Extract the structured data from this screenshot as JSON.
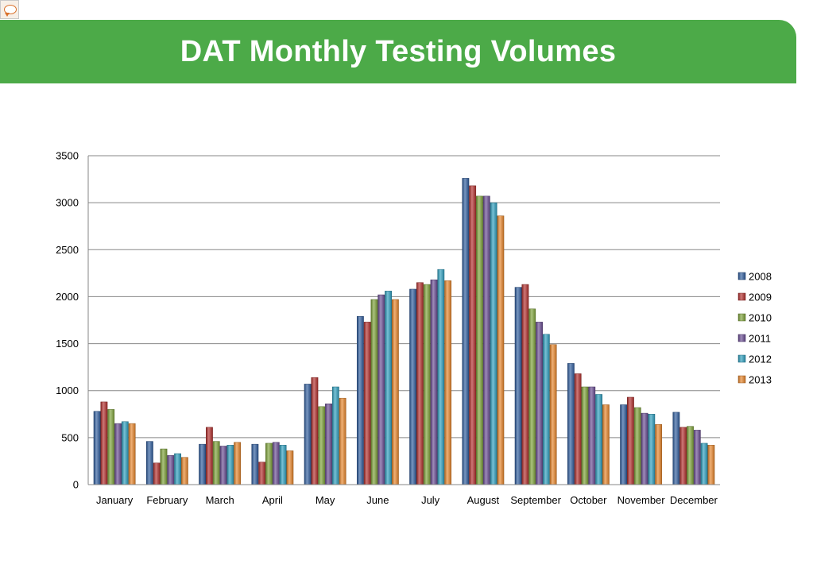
{
  "slide": {
    "title": "DAT Monthly Testing Volumes",
    "banner_color": "#4caa48",
    "corner_icon": "speech-bubble-icon"
  },
  "chart_data": {
    "type": "bar",
    "title": "DAT Monthly Testing Volumes",
    "xlabel": "",
    "ylabel": "",
    "ylim": [
      0,
      3500
    ],
    "yticks": [
      0,
      500,
      1000,
      1500,
      2000,
      2500,
      3000,
      3500
    ],
    "grid": true,
    "legend_position": "right",
    "categories": [
      "January",
      "February",
      "March",
      "April",
      "May",
      "June",
      "July",
      "August",
      "September",
      "October",
      "November",
      "December"
    ],
    "series": [
      {
        "name": "2008",
        "color": "#2f5d9e",
        "values": [
          780,
          460,
          430,
          430,
          1070,
          1790,
          2080,
          3260,
          2100,
          1290,
          850,
          770
        ]
      },
      {
        "name": "2009",
        "color": "#b3302d",
        "values": [
          880,
          230,
          610,
          240,
          1140,
          1730,
          2150,
          3180,
          2130,
          1180,
          930,
          610
        ]
      },
      {
        "name": "2010",
        "color": "#7ea339",
        "values": [
          800,
          380,
          460,
          440,
          830,
          1970,
          2130,
          3070,
          1870,
          1040,
          820,
          620
        ]
      },
      {
        "name": "2011",
        "color": "#6a4c93",
        "values": [
          650,
          310,
          410,
          450,
          860,
          2020,
          2180,
          3070,
          1730,
          1040,
          760,
          580
        ]
      },
      {
        "name": "2012",
        "color": "#2e9fbf",
        "values": [
          670,
          330,
          420,
          420,
          1040,
          2060,
          2290,
          3000,
          1600,
          960,
          750,
          440
        ]
      },
      {
        "name": "2013",
        "color": "#e8862a",
        "values": [
          650,
          290,
          450,
          360,
          920,
          1970,
          2170,
          2860,
          1490,
          850,
          640,
          420
        ]
      }
    ]
  }
}
